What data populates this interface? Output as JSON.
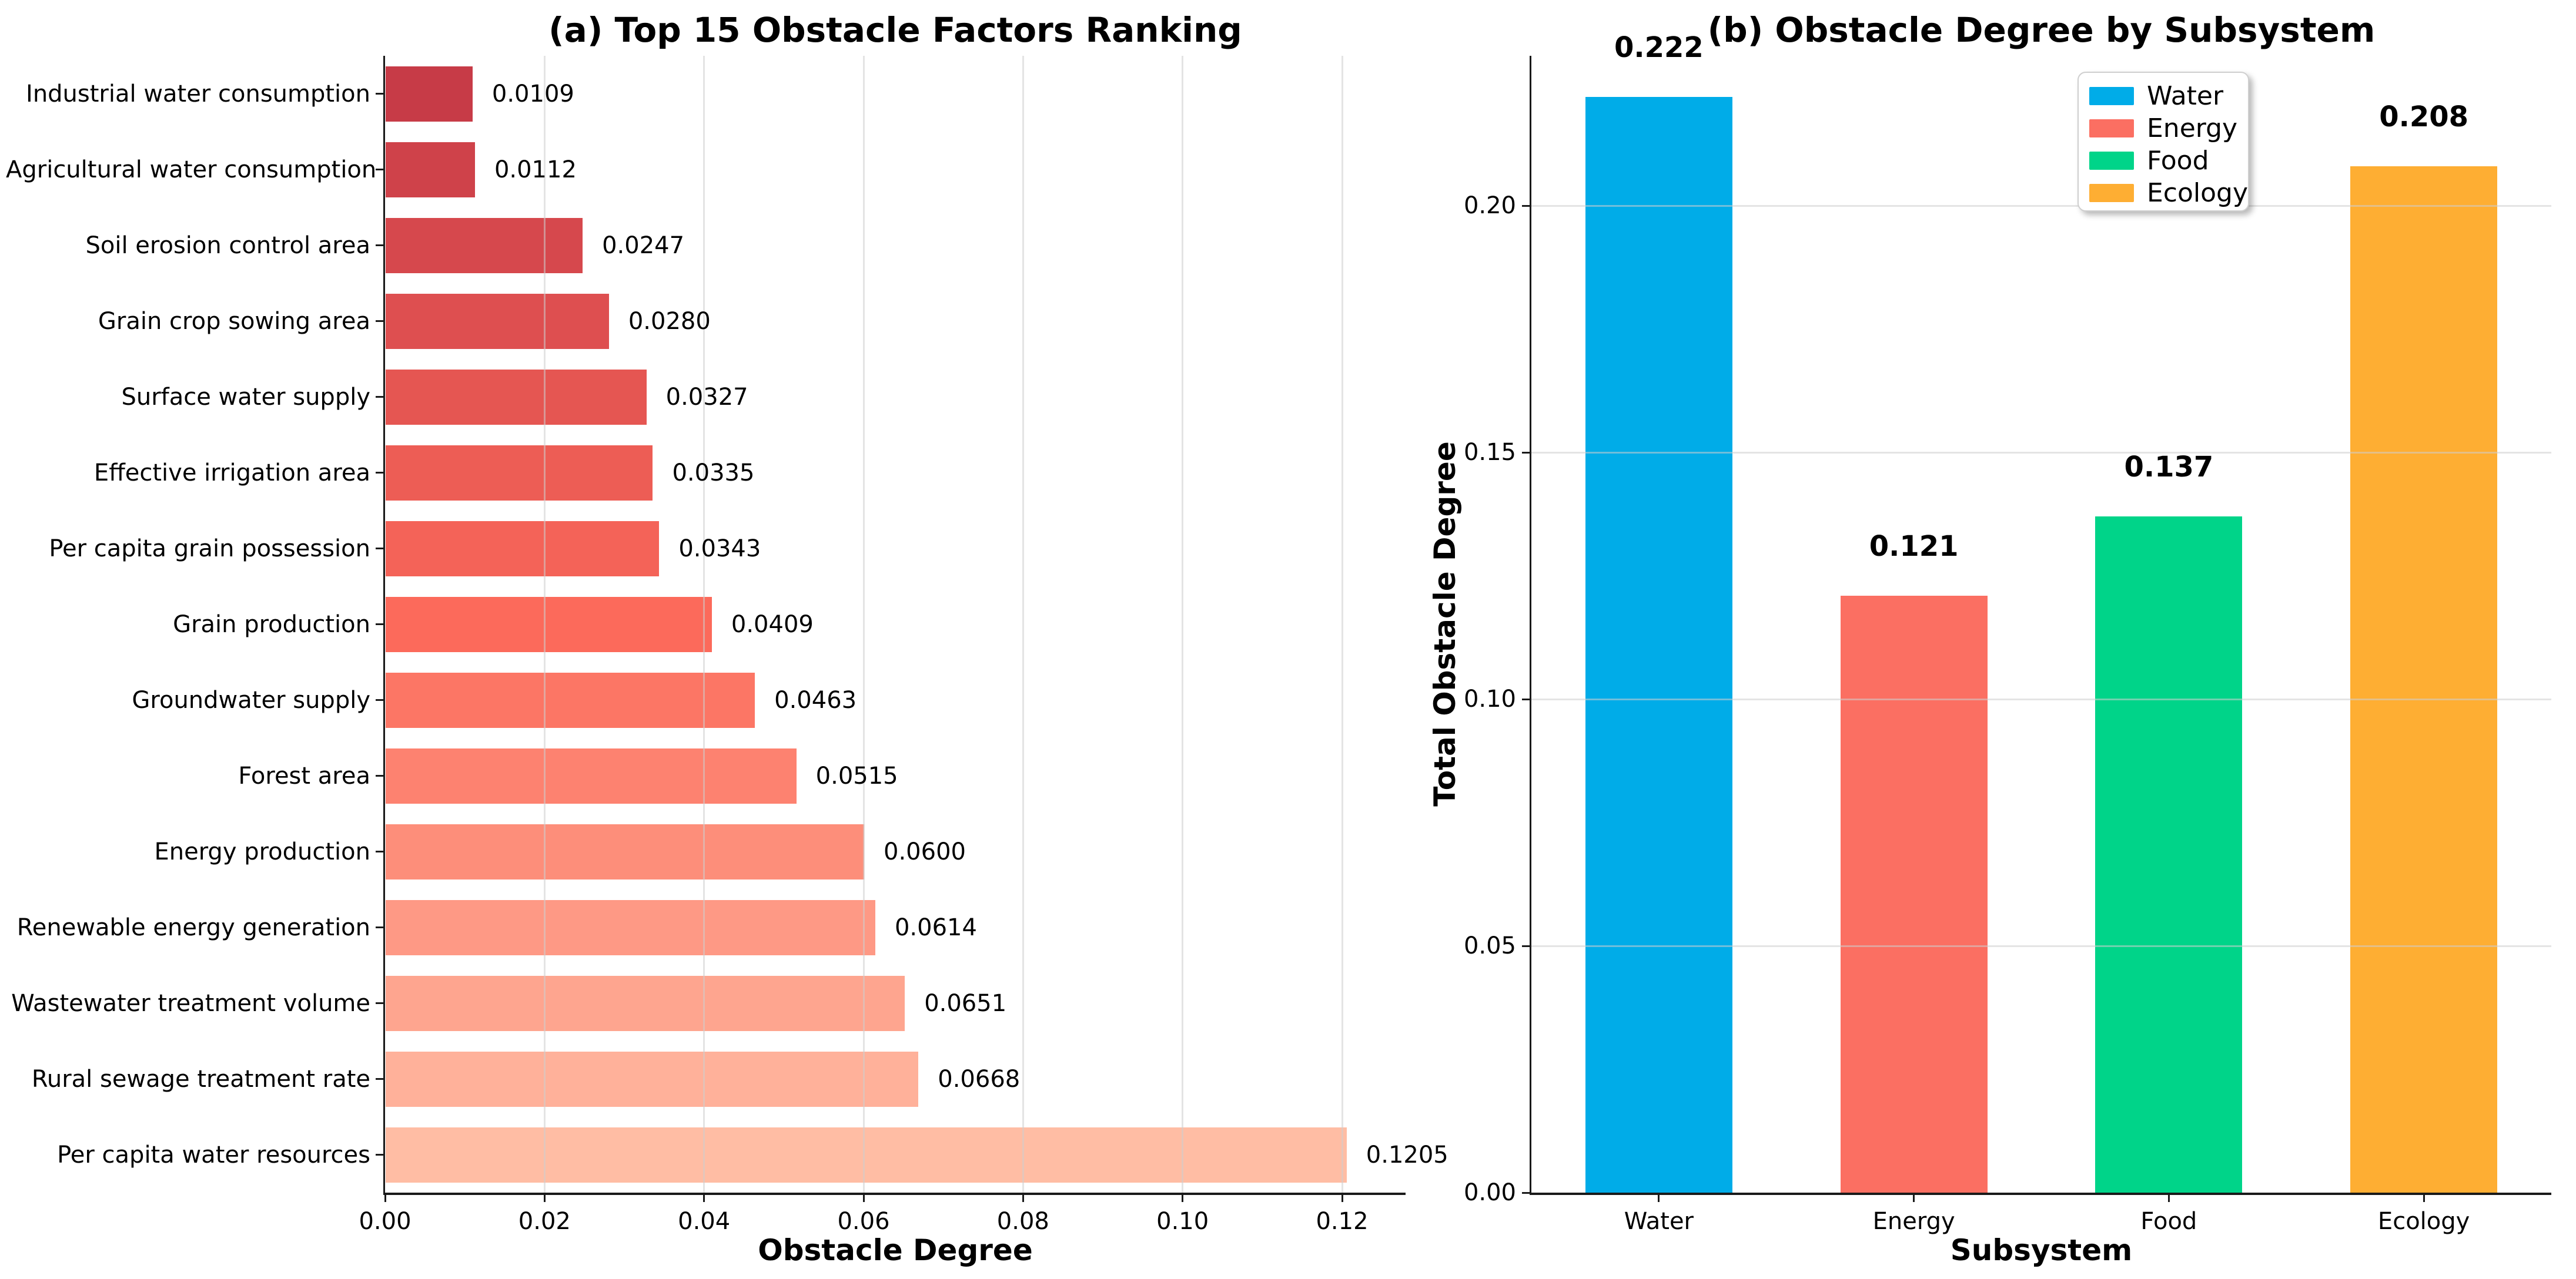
{
  "chart_data": [
    {
      "type": "bar",
      "orientation": "horizontal",
      "title": "(a) Top 15 Obstacle Factors Ranking",
      "xlabel": "Obstacle Degree",
      "ylabel": "",
      "xlim": [
        0.0,
        0.128
      ],
      "grid": "vertical",
      "x_ticks": [
        0.0,
        0.02,
        0.04,
        0.06,
        0.08,
        0.1,
        0.12
      ],
      "x_tick_labels": [
        "0.00",
        "0.02",
        "0.04",
        "0.06",
        "0.08",
        "0.10",
        "0.12"
      ],
      "categories": [
        "Industrial water consumption",
        "Agricultural water consumption",
        "Soil erosion control area",
        "Grain crop sowing area",
        "Surface water supply",
        "Effective irrigation area",
        "Per capita grain possession",
        "Grain production",
        "Groundwater supply",
        "Forest area",
        "Energy production",
        "Renewable energy generation",
        "Wastewater treatment volume",
        "Rural sewage treatment rate",
        "Per capita water resources"
      ],
      "values": [
        0.0109,
        0.0112,
        0.0247,
        0.028,
        0.0327,
        0.0335,
        0.0343,
        0.0409,
        0.0463,
        0.0515,
        0.06,
        0.0614,
        0.0651,
        0.0668,
        0.1205
      ],
      "value_labels": [
        "0.0109",
        "0.0112",
        "0.0247",
        "0.0280",
        "0.0327",
        "0.0335",
        "0.0343",
        "0.0409",
        "0.0463",
        "0.0515",
        "0.0600",
        "0.0614",
        "0.0651",
        "0.0668",
        "0.1205"
      ],
      "bar_colors": [
        "#C73B47",
        "#CF424A",
        "#D6484D",
        "#DE4F50",
        "#E55652",
        "#ED5D55",
        "#F46358",
        "#FC6A5B",
        "#FC7665",
        "#FD8270",
        "#FD8E7A",
        "#FE9985",
        "#FEA58F",
        "#FFB19A",
        "#FFBDA4"
      ]
    },
    {
      "type": "bar",
      "orientation": "vertical",
      "title": "(b) Obstacle Degree by Subsystem",
      "xlabel": "Subsystem",
      "ylabel": "Total Obstacle Degree",
      "ylim": [
        0.0,
        0.2304
      ],
      "grid": "horizontal",
      "y_ticks": [
        0.0,
        0.05,
        0.1,
        0.15,
        0.2
      ],
      "y_tick_labels": [
        "0.00",
        "0.05",
        "0.10",
        "0.15",
        "0.20"
      ],
      "categories": [
        "Water",
        "Energy",
        "Food",
        "Ecology"
      ],
      "values": [
        0.222,
        0.121,
        0.137,
        0.208
      ],
      "value_labels": [
        "0.222",
        "0.121",
        "0.137",
        "0.208"
      ],
      "bar_colors": [
        "#00ACE8",
        "#FB6F62",
        "#00D489",
        "#FEAE33"
      ],
      "legend": {
        "position": "upper right",
        "entries": [
          {
            "label": "Water",
            "color": "#00ACE8"
          },
          {
            "label": "Energy",
            "color": "#FB6F62"
          },
          {
            "label": "Food",
            "color": "#00D489"
          },
          {
            "label": "Ecology",
            "color": "#FEAE33"
          }
        ]
      }
    }
  ],
  "colors": {
    "background": "#FFFFFF",
    "grid": "#DCDCDC",
    "spine": "#1A1A1A",
    "text": "#000000"
  }
}
